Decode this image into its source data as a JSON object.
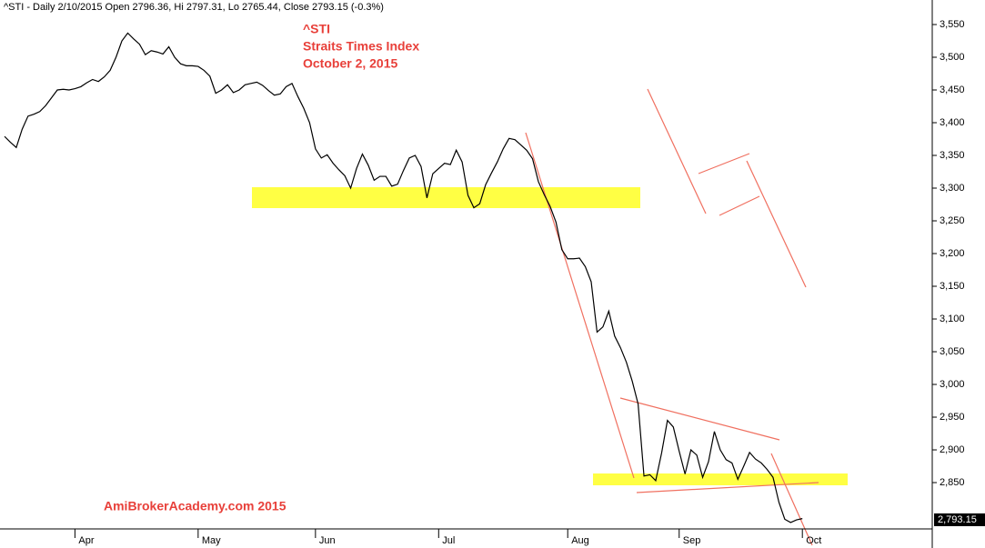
{
  "chart_data": {
    "type": "line",
    "header": "^STI - Daily 2/10/2015 Open 2796.36, Hi 2797.31, Lo 2765.44, Close 2793.15 (-0.3%)",
    "annotations": [
      "^STI",
      "Straits Times Index",
      "October 2, 2015"
    ],
    "watermark": "AmiBrokerAcademy.com 2015",
    "categories": [
      null,
      null,
      null,
      null,
      null,
      null,
      null,
      null,
      null,
      null,
      null,
      null,
      "Apr",
      null,
      null,
      null,
      null,
      null,
      null,
      null,
      null,
      null,
      null,
      null,
      null,
      null,
      null,
      null,
      null,
      null,
      null,
      null,
      null,
      "May",
      null,
      null,
      null,
      null,
      null,
      null,
      null,
      null,
      null,
      null,
      null,
      null,
      null,
      null,
      null,
      null,
      null,
      null,
      null,
      "Jun",
      null,
      null,
      null,
      null,
      null,
      null,
      null,
      null,
      null,
      null,
      null,
      null,
      null,
      null,
      null,
      null,
      null,
      null,
      null,
      null,
      "Jul",
      null,
      null,
      null,
      null,
      null,
      null,
      null,
      null,
      null,
      null,
      null,
      null,
      null,
      null,
      null,
      null,
      null,
      null,
      null,
      null,
      null,
      "Aug",
      null,
      null,
      null,
      null,
      null,
      null,
      null,
      null,
      null,
      null,
      null,
      null,
      null,
      null,
      null,
      null,
      null,
      null,
      "Sep",
      null,
      null,
      null,
      null,
      null,
      null,
      null,
      null,
      null,
      null,
      null,
      null,
      null,
      null,
      null,
      null,
      null,
      null,
      null,
      null,
      "Oct"
    ],
    "values": [
      3379,
      3370,
      3362,
      3390,
      3410,
      3413,
      3417,
      3426,
      3438,
      3450,
      3451,
      3450,
      3452,
      3455,
      3461,
      3466,
      3463,
      3470,
      3480,
      3500,
      3525,
      3537,
      3528,
      3520,
      3504,
      3510,
      3508,
      3505,
      3516,
      3500,
      3490,
      3487,
      3487,
      3486,
      3480,
      3471,
      3445,
      3450,
      3458,
      3446,
      3450,
      3458,
      3460,
      3462,
      3457,
      3449,
      3442,
      3444,
      3455,
      3460,
      3440,
      3422,
      3400,
      3360,
      3346,
      3351,
      3338,
      3328,
      3319,
      3300,
      3330,
      3352,
      3335,
      3312,
      3318,
      3318,
      3303,
      3306,
      3327,
      3346,
      3350,
      3333,
      3285,
      3322,
      3330,
      3338,
      3336,
      3358,
      3340,
      3289,
      3270,
      3276,
      3305,
      3323,
      3340,
      3360,
      3376,
      3374,
      3366,
      3358,
      3345,
      3310,
      3290,
      3272,
      3248,
      3206,
      3192,
      3192,
      3193,
      3180,
      3157,
      3080,
      3088,
      3112,
      3074,
      3056,
      3034,
      3005,
      2970,
      2860,
      2862,
      2853,
      2895,
      2945,
      2935,
      2898,
      2863,
      2900,
      2892,
      2858,
      2882,
      2928,
      2900,
      2885,
      2880,
      2855,
      2875,
      2896,
      2886,
      2880,
      2870,
      2858,
      2820,
      2794,
      2789,
      2793,
      2795
    ],
    "color": "#000000",
    "ylim": [
      2779.2,
      3587.5
    ],
    "yticks": [
      {
        "value": 2850,
        "label": "2,850"
      },
      {
        "value": 2900,
        "label": "2,900"
      },
      {
        "value": 2950,
        "label": "2,950"
      },
      {
        "value": 3000,
        "label": "3,000"
      },
      {
        "value": 3050,
        "label": "3,050"
      },
      {
        "value": 3100,
        "label": "3,100"
      },
      {
        "value": 3150,
        "label": "3,150"
      },
      {
        "value": 3200,
        "label": "3,200"
      },
      {
        "value": 3250,
        "label": "3,250"
      },
      {
        "value": 3300,
        "label": "3,300"
      },
      {
        "value": 3350,
        "label": "3,350"
      },
      {
        "value": 3400,
        "label": "3,400"
      },
      {
        "value": 3450,
        "label": "3,450"
      },
      {
        "value": 3500,
        "label": "3,500"
      },
      {
        "value": 3550,
        "label": "3,550"
      }
    ],
    "last_price": {
      "value": 2793.15,
      "label": "2,793.15"
    }
  }
}
